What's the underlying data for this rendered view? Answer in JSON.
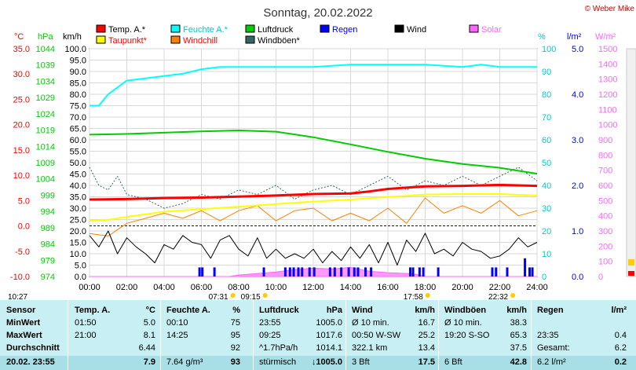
{
  "title": "Sonntag, 20.02.2022",
  "copyright": "© Weber Mike",
  "legend": [
    {
      "label": "Temp. A.*",
      "color": "#ff0000",
      "text_color": "#000000"
    },
    {
      "label": "Feuchte A.*",
      "color": "#00ffff",
      "text_color": "#00cccc"
    },
    {
      "label": "Luftdruck",
      "color": "#00cc00",
      "text_color": "#000000"
    },
    {
      "label": "Regen",
      "color": "#0000ff",
      "text_color": "#0000ff"
    },
    {
      "label": "Wind",
      "color": "#000000",
      "text_color": "#000000"
    },
    {
      "label": "Solar",
      "color": "#ff66ff",
      "text_color": "#ff66ff"
    },
    {
      "label": "Taupunkt*",
      "color": "#ffff00",
      "text_color": "#ff0000"
    },
    {
      "label": "Windchill",
      "color": "#ff8000",
      "text_color": "#ff0000"
    },
    {
      "label": "Windböen*",
      "color": "#336666",
      "text_color": "#000000"
    }
  ],
  "axis_units": {
    "temp": "°C",
    "pressure": "hPa",
    "wind": "km/h",
    "humidity": "%",
    "rain": "l/m²",
    "solar": "W/m²"
  },
  "chart_data": {
    "type": "line",
    "x_ticks": [
      "00:00",
      "02:00",
      "04:00",
      "06:00",
      "08:00",
      "10:00",
      "12:00",
      "14:00",
      "16:00",
      "18:00",
      "20:00",
      "22:00",
      "24:00"
    ],
    "axes": {
      "temp": {
        "ticks": [
          "35.0",
          "30.0",
          "25.0",
          "20.0",
          "15.0",
          "10.0",
          "5.0",
          "0.0",
          "-5.0",
          "-10.0"
        ],
        "range": [
          -10,
          35
        ],
        "color": "#ff0000"
      },
      "pressure": {
        "ticks": [
          "1044",
          "1039",
          "1034",
          "1029",
          "1024",
          "1019",
          "1014",
          "1009",
          "1004",
          "999",
          "994",
          "989",
          "984",
          "979",
          "974"
        ],
        "range": [
          974,
          1044
        ],
        "color": "#00cc00"
      },
      "wind": {
        "ticks": [
          "100.0",
          "95.0",
          "90.0",
          "85.0",
          "80.0",
          "75.0",
          "70.0",
          "65.0",
          "60.0",
          "55.0",
          "50.0",
          "45.0",
          "40.0",
          "35.0",
          "30.0",
          "25.0",
          "20.0",
          "15.0",
          "10.0",
          "5.0",
          "0.0"
        ],
        "range": [
          0,
          100
        ],
        "color": "#000000"
      },
      "humidity": {
        "ticks": [
          "100",
          "90",
          "80",
          "70",
          "60",
          "50",
          "40",
          "30",
          "20",
          "10",
          "0"
        ],
        "range": [
          0,
          100
        ],
        "color": "#00cccc"
      },
      "rain": {
        "ticks": [
          "5.0",
          "4.0",
          "3.0",
          "2.0",
          "1.0",
          "0.0"
        ],
        "range": [
          0,
          5
        ],
        "color": "#0000ff"
      },
      "solar": {
        "ticks": [
          "1500",
          "1400",
          "1300",
          "1200",
          "1100",
          "1000",
          "900",
          "800",
          "700",
          "600",
          "500",
          "400",
          "300",
          "200",
          "100",
          "0"
        ],
        "range": [
          0,
          1500
        ],
        "color": "#ff66ff"
      }
    },
    "series": [
      {
        "name": "Feuchte A.*",
        "axis": "humidity",
        "x": [
          0,
          0.5,
          1,
          2,
          3,
          4,
          5,
          6,
          7,
          8,
          10,
          12,
          14,
          15,
          16,
          18,
          20,
          21,
          22,
          24
        ],
        "values": [
          75,
          75,
          80,
          86,
          87,
          88,
          89,
          91,
          92,
          92,
          92,
          92,
          93,
          93,
          93,
          93,
          92,
          93,
          92,
          92
        ]
      },
      {
        "name": "Luftdruck",
        "axis": "pressure",
        "x": [
          0,
          2,
          4,
          6,
          8,
          10,
          12,
          14,
          16,
          18,
          20,
          22,
          23,
          24
        ],
        "values": [
          1017.6,
          1017.8,
          1018.2,
          1018.6,
          1018.9,
          1018.5,
          1016.8,
          1014.6,
          1012.3,
          1010.2,
          1008.6,
          1007.4,
          1006.5,
          1005.6
        ]
      },
      {
        "name": "Temp. A.*",
        "axis": "temp",
        "x": [
          0,
          2,
          4,
          6,
          8,
          10,
          12,
          14,
          15,
          16,
          18,
          20,
          21,
          22,
          24
        ],
        "values": [
          5.2,
          5.3,
          5.5,
          5.6,
          5.8,
          6.0,
          6.3,
          6.4,
          6.8,
          7.3,
          7.8,
          7.9,
          8.0,
          8.1,
          7.9
        ]
      },
      {
        "name": "Taupunkt*",
        "axis": "temp",
        "x": [
          0,
          1,
          2,
          3,
          4,
          6,
          8,
          10,
          12,
          14,
          16,
          18,
          20,
          22,
          24
        ],
        "values": [
          1.0,
          1.2,
          1.8,
          2.3,
          2.8,
          3.3,
          3.8,
          4.3,
          4.8,
          5.2,
          5.7,
          6.2,
          6.3,
          6.3,
          6.0
        ]
      },
      {
        "name": "Windchill",
        "axis": "temp",
        "x": [
          0,
          1,
          2,
          3,
          4,
          5,
          6,
          7,
          8,
          9,
          10,
          11,
          12,
          13,
          14,
          15,
          16,
          17,
          18,
          19,
          20,
          21,
          22,
          23,
          24
        ],
        "values": [
          -1.5,
          -2.0,
          0.5,
          1.5,
          2.5,
          1.5,
          3.0,
          1.0,
          3.0,
          4.0,
          1.0,
          3.0,
          3.5,
          1.0,
          2.5,
          1.0,
          3.5,
          0.5,
          5.5,
          2.5,
          4.0,
          2.5,
          5.0,
          2.0,
          3.0
        ]
      },
      {
        "name": "Wind",
        "axis": "wind",
        "x": [
          0,
          0.5,
          1,
          1.5,
          2,
          2.5,
          3,
          3.5,
          4,
          4.5,
          5,
          5.5,
          6,
          6.5,
          7,
          7.5,
          8,
          8.5,
          9,
          9.5,
          10,
          10.5,
          11,
          11.5,
          12,
          12.5,
          13,
          13.5,
          14,
          14.5,
          15,
          15.5,
          16,
          16.5,
          17,
          17.5,
          18,
          18.5,
          19,
          19.5,
          20,
          20.5,
          21,
          21.5,
          22,
          22.5,
          23,
          23.5,
          24
        ],
        "values": [
          18,
          13,
          20,
          10,
          17,
          13,
          10,
          6,
          14,
          12,
          18,
          15,
          14,
          8,
          16,
          18,
          12,
          9,
          17,
          8,
          12,
          8,
          10,
          8,
          12,
          6,
          11,
          7,
          13,
          8,
          14,
          6,
          15,
          5,
          16,
          11,
          19,
          10,
          12,
          9,
          15,
          12,
          11,
          8,
          9,
          12,
          17,
          13,
          15
        ]
      },
      {
        "name": "Windböen*",
        "axis": "wind",
        "x": [
          0,
          0.5,
          1,
          1.5,
          2,
          3,
          4,
          5,
          6,
          7,
          8,
          9,
          10,
          11,
          12,
          13,
          14,
          15,
          16,
          17,
          18,
          19,
          20,
          21,
          22,
          23,
          24
        ],
        "values": [
          48,
          40,
          38,
          44,
          36,
          34,
          30,
          32,
          36,
          34,
          38,
          36,
          40,
          34,
          38,
          40,
          36,
          40,
          44,
          38,
          42,
          40,
          44,
          40,
          44,
          48,
          42
        ]
      }
    ],
    "rain_events": [
      {
        "x": 5.9,
        "value": 0.2
      },
      {
        "x": 6.05,
        "value": 0.2
      },
      {
        "x": 6.7,
        "value": 0.2
      },
      {
        "x": 9.35,
        "value": 0.2
      },
      {
        "x": 10.5,
        "value": 0.2
      },
      {
        "x": 10.75,
        "value": 0.2
      },
      {
        "x": 10.95,
        "value": 0.2
      },
      {
        "x": 11.2,
        "value": 0.2
      },
      {
        "x": 11.4,
        "value": 0.2
      },
      {
        "x": 11.8,
        "value": 0.2
      },
      {
        "x": 12.05,
        "value": 0.2
      },
      {
        "x": 12.9,
        "value": 0.2
      },
      {
        "x": 13.15,
        "value": 0.2
      },
      {
        "x": 13.5,
        "value": 0.2
      },
      {
        "x": 13.9,
        "value": 0.2
      },
      {
        "x": 14.2,
        "value": 0.2
      },
      {
        "x": 14.4,
        "value": 0.2
      },
      {
        "x": 14.8,
        "value": 0.2
      },
      {
        "x": 15.1,
        "value": 0.2
      },
      {
        "x": 17.2,
        "value": 0.2
      },
      {
        "x": 17.35,
        "value": 0.2
      },
      {
        "x": 17.7,
        "value": 0.2
      },
      {
        "x": 17.9,
        "value": 0.2
      },
      {
        "x": 18.7,
        "value": 0.2
      },
      {
        "x": 21.6,
        "value": 0.2
      },
      {
        "x": 21.8,
        "value": 0.2
      },
      {
        "x": 22.4,
        "value": 0.2
      },
      {
        "x": 23.35,
        "value": 0.4
      },
      {
        "x": 23.6,
        "value": 0.2
      },
      {
        "x": 23.75,
        "value": 0.2
      }
    ],
    "solar_series": {
      "name": "Solar",
      "x": [
        0,
        7.5,
        8,
        9,
        10,
        11,
        12,
        13,
        14,
        15,
        16,
        17,
        17.5,
        18,
        24
      ],
      "values": [
        0,
        0,
        10,
        20,
        30,
        45,
        55,
        50,
        60,
        35,
        25,
        20,
        15,
        0,
        0
      ]
    }
  },
  "sun_events": [
    {
      "label": "10:27",
      "x": 0
    },
    {
      "label": "07:31",
      "x": 7.52
    },
    {
      "label": "09:15",
      "x": 9.25
    },
    {
      "label": "17:58",
      "x": 17.97
    },
    {
      "label": "22:32",
      "x": 22.53
    }
  ],
  "table": {
    "header": [
      "Sensor",
      "Temp. A.",
      "°C",
      "Feuchte A.",
      "%",
      "Luftdruck",
      "hPa",
      "Wind",
      "km/h",
      "Windböen",
      "km/h",
      "Regen",
      "l/m²"
    ],
    "rows": [
      [
        "MinWert",
        "01:50",
        "5.0",
        "00:10",
        "75",
        "23:55",
        "1005.0",
        "Ø 10 min.",
        "16.7",
        "Ø 10 min.",
        "38.3",
        "",
        ""
      ],
      [
        "MaxWert",
        "21:00",
        "8.1",
        "14:25",
        "95",
        "09:25",
        "1017.6",
        "00:50   W-SW",
        "25.2",
        "19:20   S-SO",
        "65.3",
        "23:35",
        "0.4"
      ],
      [
        "Durchschnitt",
        "",
        "6.44",
        "",
        "92",
        "^1.7hPa/h",
        "1014.1",
        "322.1 km",
        "13.4",
        "",
        "37.5",
        "Gesamt:",
        "6.2"
      ],
      [
        "20.02.  23:55",
        "",
        "7.9",
        "7.64 g/m³",
        "93",
        "stürmisch",
        "↓1005.0",
        "3 Bft",
        "17.5",
        "6 Bft",
        "42.8",
        "6.2 l/m²",
        "0.2"
      ]
    ]
  }
}
